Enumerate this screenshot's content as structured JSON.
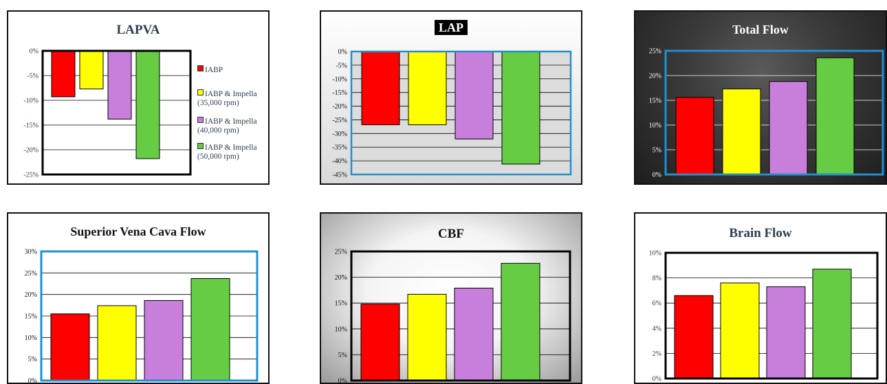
{
  "charts": [
    {
      "type": "bar",
      "title": "LAPVA",
      "ylim": [
        -25,
        0
      ],
      "yticks": [
        0,
        -5,
        -10,
        -15,
        -20,
        -25
      ],
      "tick_suffix": "%",
      "values": [
        -9.3,
        -7.7,
        -13.8,
        -21.8
      ],
      "legend": [
        "IABP",
        "IABP & Impella (35,000 rpm)",
        "IABP & Impella (40,000 rpm)",
        "IABP & Impella (50,000 rpm)"
      ],
      "grid": true
    },
    {
      "type": "bar",
      "title": "LAP",
      "ylim": [
        -45,
        0
      ],
      "yticks": [
        0,
        -5,
        -10,
        -15,
        -20,
        -25,
        -30,
        -35,
        -40,
        -45
      ],
      "tick_suffix": "%",
      "values": [
        -26.8,
        -26.8,
        -32.0,
        -41.2
      ],
      "grid": true
    },
    {
      "type": "bar",
      "title": "Total Flow",
      "ylim": [
        0,
        25
      ],
      "yticks": [
        0,
        5,
        10,
        15,
        20,
        25
      ],
      "tick_suffix": "%",
      "values": [
        15.6,
        17.3,
        18.8,
        23.6
      ],
      "grid": true
    },
    {
      "type": "bar",
      "title": "Superior Vena Cava Flow",
      "ylim": [
        0,
        30
      ],
      "yticks": [
        0,
        5,
        10,
        15,
        20,
        25,
        30
      ],
      "tick_suffix": "%",
      "values": [
        15.5,
        17.4,
        18.6,
        23.7
      ],
      "grid": true
    },
    {
      "type": "bar",
      "title": "CBF",
      "ylim": [
        0,
        25
      ],
      "yticks": [
        0,
        5,
        10,
        15,
        20,
        25
      ],
      "tick_suffix": "%",
      "values": [
        14.8,
        16.7,
        17.9,
        22.7
      ],
      "grid": true
    },
    {
      "type": "bar",
      "title": "Brain Flow",
      "ylim": [
        0,
        10
      ],
      "yticks": [
        0,
        2,
        4,
        6,
        8,
        10
      ],
      "tick_suffix": "%",
      "values": [
        6.6,
        7.6,
        7.3,
        8.7
      ],
      "grid": true
    }
  ],
  "colors": [
    "#ff0000",
    "#ffff00",
    "#c77fdb",
    "#66cc44"
  ]
}
